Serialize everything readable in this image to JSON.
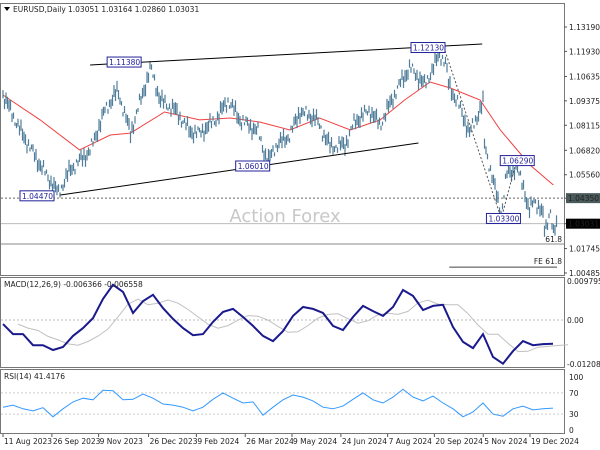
{
  "header": {
    "symbol": "EURUSD,Daily",
    "ohlc": "1.03051 1.03164 1.02860 1.03031",
    "menu_icon": "triangle-down-icon"
  },
  "watermark": "Action Forex",
  "colors": {
    "price": "#4f7d9a",
    "ma": "#f04040",
    "macd": "#1a1a8c",
    "signal": "#c0c0c0",
    "rsi": "#3399ff",
    "trendline": "#000000",
    "label_box": "#22229a"
  },
  "chart_data": [
    {
      "type": "line",
      "panel": "price",
      "price_axis_ticks": [
        "1.13190",
        "1.11930",
        "1.10635",
        "1.09375",
        "1.08115",
        "1.06820",
        "1.05560",
        "1.04350",
        "1.03031",
        "1.01745",
        "1.00485"
      ],
      "ylim": [
        1.00485,
        1.1319
      ],
      "series": [
        {
          "kind": "close",
          "points": [
            [
              "2023-08-11",
              1.0968
            ],
            [
              "2023-08-27",
              1.0787
            ],
            [
              "2023-09-15",
              1.0606
            ],
            [
              "2023-10-02",
              1.046
            ],
            [
              "2023-10-13",
              1.058
            ],
            [
              "2023-11-01",
              1.068
            ],
            [
              "2023-11-15",
              1.089
            ],
            [
              "2023-11-27",
              1.099
            ],
            [
              "2023-12-09",
              1.077
            ],
            [
              "2023-12-28",
              1.111
            ],
            [
              "2024-01-06",
              1.094
            ],
            [
              "2024-01-20",
              1.089
            ],
            [
              "2024-02-03",
              1.078
            ],
            [
              "2024-02-12",
              1.077
            ],
            [
              "2024-02-27",
              1.084
            ],
            [
              "2024-03-10",
              1.094
            ],
            [
              "2024-03-21",
              1.084
            ],
            [
              "2024-04-07",
              1.078
            ],
            [
              "2024-04-16",
              1.062
            ],
            [
              "2024-04-23",
              1.07
            ],
            [
              "2024-05-07",
              1.076
            ],
            [
              "2024-05-16",
              1.088
            ],
            [
              "2024-05-31",
              1.085
            ],
            [
              "2024-06-14",
              1.07
            ],
            [
              "2024-06-28",
              1.071
            ],
            [
              "2024-07-07",
              1.083
            ],
            [
              "2024-07-21",
              1.089
            ],
            [
              "2024-07-31",
              1.081
            ],
            [
              "2024-08-09",
              1.092
            ],
            [
              "2024-08-19",
              1.103
            ],
            [
              "2024-08-28",
              1.111
            ],
            [
              "2024-09-11",
              1.102
            ],
            [
              "2024-09-25",
              1.118
            ],
            [
              "2024-10-01",
              1.113
            ],
            [
              "2024-10-03",
              1.103
            ],
            [
              "2024-10-15",
              1.089
            ],
            [
              "2024-10-23",
              1.077
            ],
            [
              "2024-11-01",
              1.088
            ],
            [
              "2024-11-05",
              1.093
            ],
            [
              "2024-11-06",
              1.072
            ],
            [
              "2024-11-14",
              1.053
            ],
            [
              "2024-11-22",
              1.035
            ],
            [
              "2024-11-27",
              1.056
            ],
            [
              "2024-12-06",
              1.059
            ],
            [
              "2024-12-13",
              1.05
            ],
            [
              "2024-12-18",
              1.036
            ],
            [
              "2024-12-23",
              1.043
            ],
            [
              "2024-12-31",
              1.035
            ],
            [
              "2025-01-02",
              1.026
            ],
            [
              "2025-01-07",
              1.038
            ],
            [
              "2025-01-10",
              1.024
            ],
            [
              "2025-01-13",
              1.0303
            ]
          ]
        },
        {
          "kind": "moving-average",
          "points": [
            [
              "2023-08-11",
              1.0968
            ],
            [
              "2023-09-15",
              1.0839
            ],
            [
              "2023-10-22",
              1.0684
            ],
            [
              "2023-11-20",
              1.0761
            ],
            [
              "2023-12-09",
              1.0771
            ],
            [
              "2024-01-10",
              1.088
            ],
            [
              "2024-02-12",
              1.0839
            ],
            [
              "2024-03-12",
              1.0849
            ],
            [
              "2024-04-09",
              1.0828
            ],
            [
              "2024-05-07",
              1.0787
            ],
            [
              "2024-06-04",
              1.0849
            ],
            [
              "2024-07-03",
              1.0787
            ],
            [
              "2024-07-31",
              1.0839
            ],
            [
              "2024-08-23",
              1.0942
            ],
            [
              "2024-09-16",
              1.1035
            ],
            [
              "2024-10-05",
              1.1004
            ],
            [
              "2024-11-02",
              1.0942
            ],
            [
              "2024-11-21",
              1.0787
            ],
            [
              "2024-12-19",
              1.0606
            ],
            [
              "2025-01-10",
              1.0503
            ]
          ]
        }
      ],
      "trendlines": [
        {
          "from": [
            "2023-11-01",
            1.1123
          ],
          "to": [
            "2024-11-04",
            1.1231
          ]
        },
        {
          "from": [
            "2023-10-04",
            1.0451
          ],
          "to": [
            "2024-09-05",
            1.072
          ]
        }
      ],
      "projection": [
        [
          "2024-09-30",
          1.1196
        ],
        [
          "2024-11-22",
          1.033
        ],
        [
          "2024-12-06",
          1.0622
        ]
      ],
      "price_labels": [
        {
          "text": "1.11380",
          "date": "2023-11-17",
          "price": 1.1138
        },
        {
          "text": "1.04470",
          "date": "2023-08-27",
          "price": 1.0447
        },
        {
          "text": "1.06010",
          "date": "2024-03-17",
          "price": 1.0601
        },
        {
          "text": "1.12130",
          "date": "2024-08-29",
          "price": 1.1213
        },
        {
          "text": "1.06290",
          "date": "2024-11-21",
          "price": 1.0629
        },
        {
          "text": "1.03300",
          "date": "2024-11-08",
          "price": 1.033
        }
      ],
      "levels": [
        {
          "price": 1.0435,
          "label": "1.04350",
          "style": "dotted"
        },
        {
          "price": 1.03031,
          "label": "1.03031",
          "style": "current"
        },
        {
          "price": 1.0198,
          "label": "61.8",
          "style": "fib"
        },
        {
          "price": 1.0079,
          "label": "FE 61.8",
          "style": "fib-extension",
          "from": "2024-10-04"
        }
      ]
    },
    {
      "type": "line",
      "panel": "macd",
      "title": "MACD(12,26,9) -0.006366 -0.006558",
      "axis_ticks": [
        "0.009795",
        "0.00",
        "-0.012081"
      ],
      "ylim": [
        -0.012081,
        0.009795
      ],
      "range": [
        "2023-08-11",
        "2025-01-13"
      ],
      "values": [
        -0.0011,
        -0.0038,
        -0.0038,
        -0.0068,
        -0.0068,
        -0.0081,
        -0.0073,
        -0.0043,
        -0.0022,
        0.0005,
        0.0057,
        0.0095,
        0.0076,
        0.0019,
        0.0051,
        0.0068,
        0.0032,
        0.0003,
        -0.0022,
        -0.0041,
        -0.0038,
        -0.0005,
        0.0022,
        0.003,
        0.0008,
        -0.0016,
        -0.0043,
        -0.0057,
        -0.003,
        0.0011,
        0.0035,
        0.003,
        0.0019,
        -0.0016,
        -0.0027,
        0.0008,
        0.0038,
        0.0024,
        0.0011,
        0.0035,
        0.0081,
        0.0065,
        0.0027,
        0.0038,
        0.0041,
        -0.0019,
        -0.0059,
        -0.0076,
        -0.0038,
        -0.01,
        -0.0118,
        -0.0084,
        -0.0057,
        -0.0068,
        -0.0065,
        -0.0064
      ]
    },
    {
      "type": "line",
      "panel": "rsi",
      "title": "RSI(14) 41.4176",
      "axis_ticks": [
        "100",
        "70",
        "30",
        "0"
      ],
      "ylim": [
        0,
        100
      ],
      "levels": [
        70,
        30
      ],
      "range": [
        "2023-08-11",
        "2025-01-13"
      ],
      "values": [
        43,
        47,
        40,
        36,
        42,
        25,
        40,
        53,
        60,
        57,
        75,
        74,
        57,
        58,
        68,
        60,
        49,
        47,
        43,
        36,
        43,
        58,
        70,
        60,
        51,
        53,
        28,
        43,
        57,
        66,
        62,
        55,
        43,
        40,
        45,
        58,
        70,
        57,
        51,
        62,
        77,
        62,
        55,
        64,
        51,
        40,
        25,
        34,
        51,
        30,
        26,
        40,
        45,
        38,
        40,
        41.4
      ]
    }
  ],
  "x_axis": {
    "ticks": [
      [
        "2023-08-11",
        "11 Aug 2023"
      ],
      [
        "2023-09-26",
        "26 Sep 2023"
      ],
      [
        "2023-11-09",
        "9 Nov 2023"
      ],
      [
        "2023-12-26",
        "26 Dec 2023"
      ],
      [
        "2024-02-09",
        "9 Feb 2024"
      ],
      [
        "2024-03-26",
        "26 Mar 2024"
      ],
      [
        "2024-05-09",
        "9 May 2024"
      ],
      [
        "2024-06-24",
        "24 Jun 2024"
      ],
      [
        "2024-08-07",
        "7 Aug 2024"
      ],
      [
        "2024-09-20",
        "20 Sep 2024"
      ],
      [
        "2024-11-05",
        "5 Nov 2024"
      ],
      [
        "2024-12-19",
        "19 Dec 2024"
      ]
    ]
  }
}
